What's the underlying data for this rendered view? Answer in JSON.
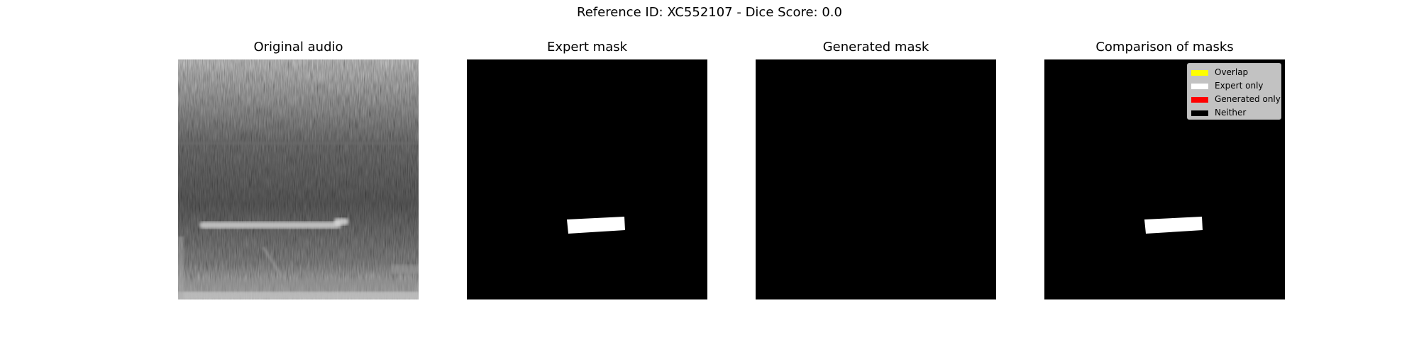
{
  "suptitle": "Reference ID: XC552107 - Dice Score: 0.0",
  "panels": [
    {
      "title": "Original audio"
    },
    {
      "title": "Expert mask"
    },
    {
      "title": "Generated mask"
    },
    {
      "title": "Comparison of masks"
    }
  ],
  "legend": [
    {
      "label": "Overlap",
      "color": "#ffff00"
    },
    {
      "label": "Expert only",
      "color": "#ffffff"
    },
    {
      "label": "Generated only",
      "color": "#ff0000"
    },
    {
      "label": "Neither",
      "color": "#000000"
    }
  ],
  "colors": {
    "background": "#ffffff",
    "mask_background": "#000000",
    "mask_foreground": "#ffffff"
  }
}
